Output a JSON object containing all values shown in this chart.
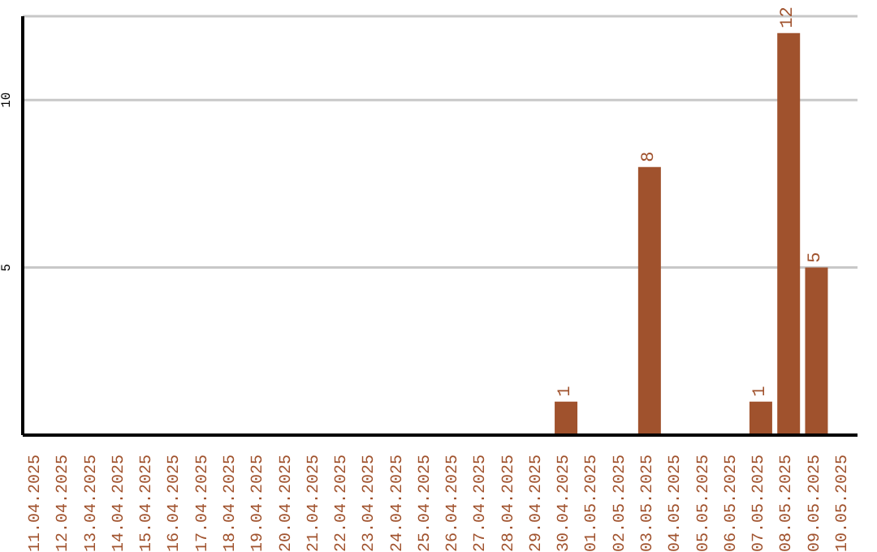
{
  "chart_data": {
    "type": "bar",
    "categories": [
      "11.04.2025",
      "12.04.2025",
      "13.04.2025",
      "14.04.2025",
      "15.04.2025",
      "16.04.2025",
      "17.04.2025",
      "18.04.2025",
      "19.04.2025",
      "20.04.2025",
      "21.04.2025",
      "22.04.2025",
      "23.04.2025",
      "24.04.2025",
      "25.04.2025",
      "26.04.2025",
      "27.04.2025",
      "28.04.2025",
      "29.04.2025",
      "30.04.2025",
      "01.05.2025",
      "02.05.2025",
      "03.05.2025",
      "04.05.2025",
      "05.05.2025",
      "06.05.2025",
      "07.05.2025",
      "08.05.2025",
      "09.05.2025",
      "10.05.2025"
    ],
    "values": [
      0,
      0,
      0,
      0,
      0,
      0,
      0,
      0,
      0,
      0,
      0,
      0,
      0,
      0,
      0,
      0,
      0,
      0,
      0,
      1,
      0,
      0,
      8,
      0,
      0,
      0,
      1,
      12,
      5,
      0
    ],
    "value_labels": [
      null,
      null,
      null,
      null,
      null,
      null,
      null,
      null,
      null,
      null,
      null,
      null,
      null,
      null,
      null,
      null,
      null,
      null,
      null,
      "1",
      null,
      null,
      "8",
      null,
      null,
      null,
      "1",
      "12",
      "5",
      null
    ],
    "color": "#a0522d",
    "ylim": [
      0,
      12.5
    ],
    "yticks": [
      5,
      10
    ],
    "grid": "y"
  }
}
